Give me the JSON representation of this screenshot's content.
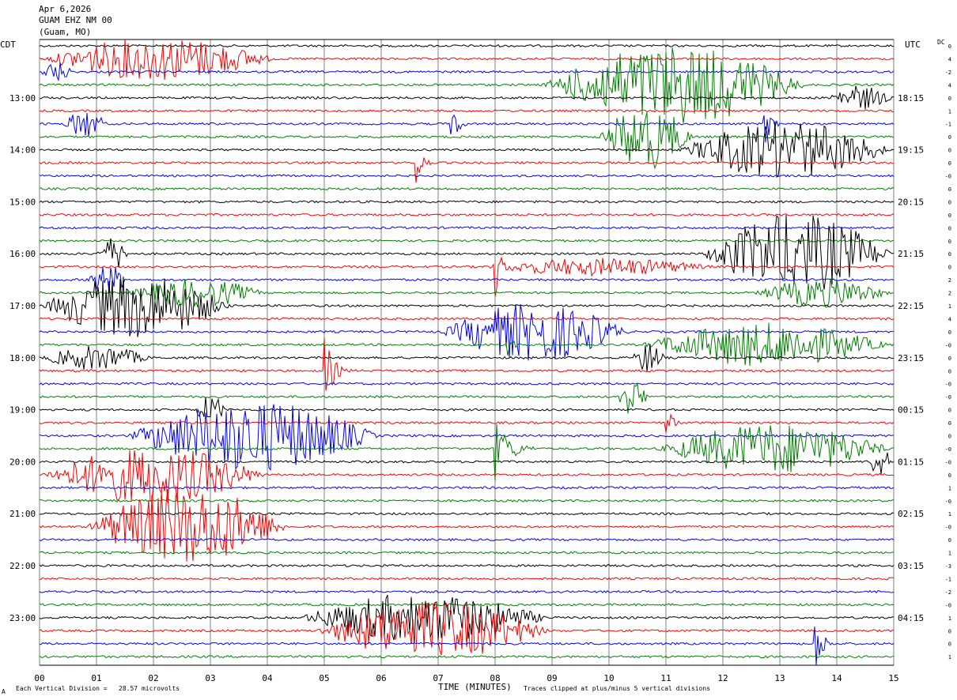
{
  "header": {
    "date": "Apr 6,2026",
    "station": "GUAM EHZ NM 00",
    "location": "(Guam, MO)"
  },
  "left_axis_title": "CDT",
  "right_axis_title": "UTC",
  "dc_title": "DC",
  "footer": {
    "division_note": "Each Vertical Division =   28.57 microvolts",
    "xlabel": "TIME (MINUTES)",
    "clip_note": "Traces clipped at plus/minus 5 vertical divisions",
    "corner_mark": "A"
  },
  "colors": {
    "trace_cycle": [
      "#000000",
      "#ff0000",
      "#0000ff",
      "#008000"
    ],
    "grid": "#808080",
    "background": "#ffffff"
  },
  "chart_data": {
    "type": "line",
    "title": "GUAM EHZ NM 00",
    "xlabel": "TIME (MINUTES)",
    "xlim": [
      0,
      15
    ],
    "x_ticks": [
      "00",
      "01",
      "02",
      "03",
      "04",
      "05",
      "06",
      "07",
      "08",
      "09",
      "10",
      "11",
      "12",
      "13",
      "14",
      "15"
    ],
    "trace_count": 48,
    "trace_minutes": 15,
    "left_hour_labels": [
      "13:00",
      "14:00",
      "15:00",
      "16:00",
      "17:00",
      "18:00",
      "19:00",
      "20:00",
      "21:00",
      "22:00",
      "23:00"
    ],
    "right_hour_labels": [
      "18:15",
      "19:15",
      "20:15",
      "21:15",
      "22:15",
      "23:15",
      "00:15",
      "01:15",
      "02:15",
      "03:15",
      "04:15"
    ],
    "hour_label_first_trace": 4,
    "dc_offsets": [
      "0",
      "4",
      "-2",
      "4",
      "0",
      "1",
      "-1",
      "0",
      "0",
      "0",
      "-0",
      "0",
      "0",
      "0",
      "0",
      "0",
      "0",
      "0",
      "2",
      "2",
      "1",
      "4",
      "0",
      "-0",
      "0",
      "0",
      "-0",
      "-0",
      "0",
      "0",
      "0",
      "-0",
      "-0",
      "0",
      "1",
      "-0",
      "1",
      "-0",
      "0",
      "1",
      "-3",
      "-1",
      "-2",
      "-0",
      "1",
      "0",
      "0",
      "1"
    ],
    "events": [
      {
        "trace": 1,
        "start": 0.0,
        "end": 4.2,
        "amp": 1.2,
        "kind": "swarm"
      },
      {
        "trace": 2,
        "start": 0.0,
        "end": 0.6,
        "amp": 0.6,
        "kind": "swarm"
      },
      {
        "trace": 3,
        "start": 8.8,
        "end": 13.5,
        "amp": 2.2,
        "kind": "swarm"
      },
      {
        "trace": 4,
        "start": 13.8,
        "end": 15.0,
        "amp": 0.7,
        "kind": "swarm"
      },
      {
        "trace": 6,
        "start": 0.4,
        "end": 1.2,
        "amp": 0.8,
        "kind": "swarm"
      },
      {
        "trace": 6,
        "start": 7.2,
        "end": 7.6,
        "amp": 2.0,
        "kind": "spike"
      },
      {
        "trace": 6,
        "start": 12.7,
        "end": 13.1,
        "amp": 2.0,
        "kind": "spike"
      },
      {
        "trace": 7,
        "start": 9.8,
        "end": 11.5,
        "amp": 1.8,
        "kind": "swarm"
      },
      {
        "trace": 8,
        "start": 11.2,
        "end": 15.0,
        "amp": 1.6,
        "kind": "swarm"
      },
      {
        "trace": 9,
        "start": 6.6,
        "end": 7.0,
        "amp": 1.8,
        "kind": "spike"
      },
      {
        "trace": 16,
        "start": 1.0,
        "end": 1.6,
        "amp": 0.9,
        "kind": "swarm"
      },
      {
        "trace": 16,
        "start": 11.6,
        "end": 15.0,
        "amp": 2.2,
        "kind": "swarm"
      },
      {
        "trace": 17,
        "start": 8.0,
        "end": 8.4,
        "amp": 2.0,
        "kind": "spike"
      },
      {
        "trace": 17,
        "start": 7.6,
        "end": 12.0,
        "amp": 0.5,
        "kind": "swarm"
      },
      {
        "trace": 18,
        "start": 0.8,
        "end": 1.6,
        "amp": 0.8,
        "kind": "swarm"
      },
      {
        "trace": 19,
        "start": 1.5,
        "end": 4.0,
        "amp": 0.8,
        "kind": "swarm"
      },
      {
        "trace": 19,
        "start": 12.5,
        "end": 15.0,
        "amp": 0.8,
        "kind": "swarm"
      },
      {
        "trace": 20,
        "start": 0.0,
        "end": 3.4,
        "amp": 1.8,
        "kind": "swarm"
      },
      {
        "trace": 22,
        "start": 7.0,
        "end": 10.4,
        "amp": 1.6,
        "kind": "swarm"
      },
      {
        "trace": 23,
        "start": 8.2,
        "end": 8.6,
        "amp": 1.0,
        "kind": "spike"
      },
      {
        "trace": 23,
        "start": 10.5,
        "end": 15.0,
        "amp": 1.2,
        "kind": "swarm"
      },
      {
        "trace": 24,
        "start": 0.0,
        "end": 2.0,
        "amp": 0.7,
        "kind": "swarm"
      },
      {
        "trace": 24,
        "start": 10.4,
        "end": 11.0,
        "amp": 0.9,
        "kind": "swarm"
      },
      {
        "trace": 25,
        "start": 5.0,
        "end": 5.6,
        "amp": 2.0,
        "kind": "spike"
      },
      {
        "trace": 27,
        "start": 10.1,
        "end": 10.7,
        "amp": 1.0,
        "kind": "swarm"
      },
      {
        "trace": 28,
        "start": 2.7,
        "end": 3.3,
        "amp": 0.8,
        "kind": "swarm"
      },
      {
        "trace": 29,
        "start": 11.0,
        "end": 11.5,
        "amp": 0.9,
        "kind": "spike"
      },
      {
        "trace": 30,
        "start": 1.5,
        "end": 6.0,
        "amp": 2.0,
        "kind": "swarm"
      },
      {
        "trace": 31,
        "start": 8.0,
        "end": 9.0,
        "amp": 1.8,
        "kind": "spike"
      },
      {
        "trace": 31,
        "start": 10.8,
        "end": 15.0,
        "amp": 1.4,
        "kind": "swarm"
      },
      {
        "trace": 32,
        "start": 14.5,
        "end": 15.0,
        "amp": 0.8,
        "kind": "swarm"
      },
      {
        "trace": 33,
        "start": 0.0,
        "end": 4.0,
        "amp": 1.6,
        "kind": "swarm"
      },
      {
        "trace": 37,
        "start": 0.8,
        "end": 4.4,
        "amp": 2.2,
        "kind": "swarm"
      },
      {
        "trace": 44,
        "start": 4.5,
        "end": 9.0,
        "amp": 1.4,
        "kind": "swarm"
      },
      {
        "trace": 45,
        "start": 4.8,
        "end": 9.0,
        "amp": 1.6,
        "kind": "swarm"
      },
      {
        "trace": 46,
        "start": 13.6,
        "end": 14.1,
        "amp": 2.0,
        "kind": "spike"
      }
    ]
  }
}
